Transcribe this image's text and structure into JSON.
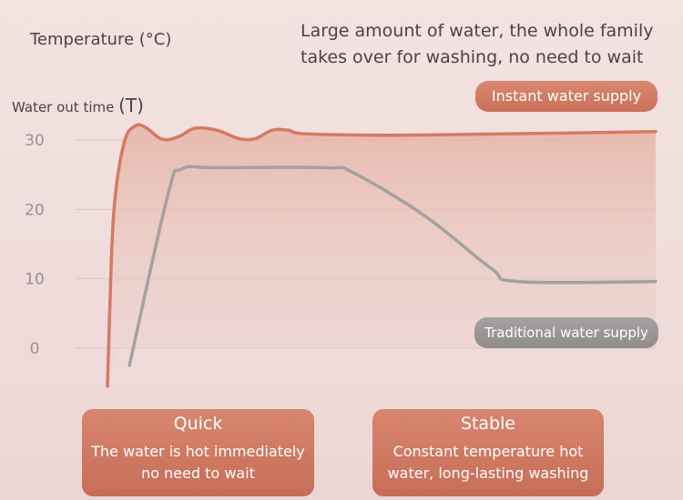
{
  "header": {
    "title": "Temperature (°C)",
    "tagline_line1": "Large amount of water, the whole family",
    "tagline_line2": "takes over for washing, no need to wait"
  },
  "axis": {
    "ylabel_small": "Water out time",
    "ylabel_big": "(T)"
  },
  "chart_data": {
    "type": "line",
    "yticks": [
      30,
      20,
      10,
      0
    ],
    "ylim": [
      -5.5,
      32
    ],
    "grid": true,
    "series": [
      {
        "name": "Instant water supply",
        "color": "#d47a62",
        "points": [
          [
            0,
            -5.5
          ],
          [
            0.4,
            5
          ],
          [
            1.2,
            20
          ],
          [
            3,
            29.5
          ],
          [
            5,
            32
          ],
          [
            7,
            31.8
          ],
          [
            10,
            30.1
          ],
          [
            13,
            30.5
          ],
          [
            16,
            31.7
          ],
          [
            20,
            31.4
          ],
          [
            24,
            30.2
          ],
          [
            27,
            30.2
          ],
          [
            30,
            31.4
          ],
          [
            33,
            31.4
          ],
          [
            36,
            30.9
          ],
          [
            50,
            30.7
          ],
          [
            65,
            30.8
          ],
          [
            100,
            31.2
          ]
        ]
      },
      {
        "name": "Traditional water supply",
        "color": "#a3a1a1",
        "points": [
          [
            4,
            -2.5
          ],
          [
            11,
            22
          ],
          [
            13.5,
            25.8
          ],
          [
            20,
            26
          ],
          [
            40,
            26
          ],
          [
            45,
            25.2
          ],
          [
            58,
            19
          ],
          [
            70,
            11.5
          ],
          [
            75,
            9.6
          ],
          [
            100,
            9.6
          ]
        ]
      }
    ]
  },
  "badges": {
    "instant": "Instant water supply",
    "traditional": "Traditional water supply"
  },
  "cards": {
    "quick_title": "Quick",
    "quick_line1": "The water is hot immediately",
    "quick_line2": "no need to wait",
    "stable_title": "Stable",
    "stable_line1": "Constant temperature hot",
    "stable_line2": "water, long-lasting washing"
  }
}
